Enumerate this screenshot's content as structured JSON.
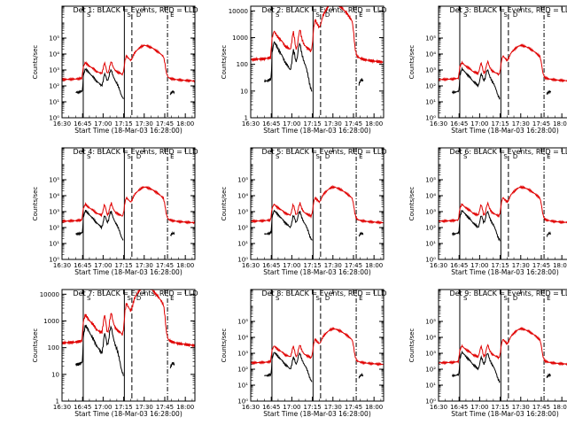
{
  "chart_data": {
    "type": "line",
    "layout": "3x3 grid of detector light curves",
    "xlabel": "Start Time (18-Mar-03 16:28:00)",
    "ylabel": "Counts/sec",
    "y_scale": "log",
    "x_tick_labels": [
      "16:30",
      "16:45",
      "17:00",
      "17:15",
      "17:30",
      "17:45",
      "18:00"
    ],
    "x_tick_values_min": [
      30,
      45,
      60,
      75,
      90,
      105,
      120
    ],
    "xlim_min": [
      30,
      127
    ],
    "series_colors": {
      "Events": "#000000",
      "LLD": "#e00000"
    },
    "panels": [
      {
        "title": "Det 1: BLACK = Events, RED = LLD",
        "ylim": [
          1,
          10000000
        ],
        "y_tick_labels": [
          "10⁰",
          "10¹",
          "10²",
          "10³",
          "10⁴",
          "10⁵"
        ],
        "y_tick_values": [
          1,
          10,
          100,
          1000,
          10000,
          100000
        ],
        "markers_min": [
          45.5,
          75.5,
          81,
          107
        ]
      },
      {
        "title": "Det 2: BLACK = Events, RED = LLD",
        "ylim": [
          1,
          15000
        ],
        "y_tick_labels": [
          "1",
          "10",
          "100",
          "1000",
          "10000"
        ],
        "y_tick_values": [
          1,
          10,
          100,
          1000,
          10000
        ],
        "markers_min": [
          45.5,
          75.5,
          81,
          107
        ]
      },
      {
        "title": "Det 3: BLACK = Events, RED = LLD",
        "ylim": [
          1,
          10000000
        ],
        "y_tick_labels": [
          "10⁰",
          "10¹",
          "10²",
          "10³",
          "10⁴",
          "10⁵"
        ],
        "y_tick_values": [
          1,
          10,
          100,
          1000,
          10000,
          100000
        ],
        "markers_min": [
          45.5,
          75.5,
          81,
          107
        ]
      },
      {
        "title": "Det 4: BLACK = Events, RED = LLD",
        "ylim": [
          1,
          10000000
        ],
        "y_tick_labels": [
          "10⁰",
          "10¹",
          "10²",
          "10³",
          "10⁴",
          "10⁵"
        ],
        "y_tick_values": [
          1,
          10,
          100,
          1000,
          10000,
          100000
        ],
        "markers_min": [
          45.5,
          75.5,
          81,
          107
        ]
      },
      {
        "title": "Det 5: BLACK = Events, RED = LLD",
        "ylim": [
          1,
          10000000
        ],
        "y_tick_labels": [
          "10⁰",
          "10¹",
          "10²",
          "10³",
          "10⁴",
          "10⁵"
        ],
        "y_tick_values": [
          1,
          10,
          100,
          1000,
          10000,
          100000
        ],
        "markers_min": [
          45.5,
          75.5,
          81,
          107
        ]
      },
      {
        "title": "Det 6: BLACK = Events, RED = LLD",
        "ylim": [
          1,
          10000000
        ],
        "y_tick_labels": [
          "10⁰",
          "10¹",
          "10²",
          "10³",
          "10⁴",
          "10⁵"
        ],
        "y_tick_values": [
          1,
          10,
          100,
          1000,
          10000,
          100000
        ],
        "markers_min": [
          45.5,
          75.5,
          81,
          107
        ]
      },
      {
        "title": "Det 7: BLACK = Events, RED = LLD",
        "ylim": [
          1,
          15000
        ],
        "y_tick_labels": [
          "1",
          "10",
          "100",
          "1000",
          "10000"
        ],
        "y_tick_values": [
          1,
          10,
          100,
          1000,
          10000
        ],
        "markers_min": [
          45.5,
          75.5,
          81,
          107
        ]
      },
      {
        "title": "Det 8: BLACK = Events, RED = LLD",
        "ylim": [
          1,
          10000000
        ],
        "y_tick_labels": [
          "10⁰",
          "10¹",
          "10²",
          "10³",
          "10⁴",
          "10⁵"
        ],
        "y_tick_values": [
          1,
          10,
          100,
          1000,
          10000,
          100000
        ],
        "markers_min": [
          45.5,
          75.5,
          81,
          107
        ]
      },
      {
        "title": "Det 9: BLACK = Events, RED = LLD",
        "ylim": [
          1,
          10000000
        ],
        "y_tick_labels": [
          "10⁰",
          "10¹",
          "10²",
          "10³",
          "10⁴",
          "10⁵"
        ],
        "y_tick_values": [
          1,
          10,
          100,
          1000,
          10000,
          100000
        ],
        "markers_min": [
          45.5,
          75.5,
          81,
          107
        ]
      }
    ],
    "lld_curve": {
      "x": [
        30,
        35,
        40,
        44.5,
        45.5,
        47,
        49,
        51,
        53,
        55,
        57,
        58,
        59,
        60,
        61,
        62,
        63,
        64,
        65,
        66,
        67,
        68,
        69,
        70,
        71,
        72,
        73,
        74,
        75,
        76,
        77,
        78,
        79,
        80,
        81,
        82,
        83,
        84,
        85,
        86,
        88,
        90,
        92,
        94,
        96,
        98,
        100,
        102,
        104,
        105,
        106,
        107,
        108,
        109,
        110,
        112,
        115,
        120,
        124,
        127
      ],
      "y": [
        250,
        260,
        270,
        300,
        1500,
        3000,
        2000,
        1500,
        1200,
        800,
        700,
        650,
        600,
        1200,
        3000,
        1500,
        600,
        800,
        2000,
        3500,
        1800,
        1200,
        900,
        800,
        700,
        650,
        600,
        500,
        900,
        4000,
        8000,
        6000,
        5000,
        4000,
        5000,
        8000,
        12000,
        15000,
        18000,
        22000,
        30000,
        35000,
        33000,
        28000,
        24000,
        18000,
        14000,
        10000,
        7000,
        3000,
        800,
        400,
        320,
        300,
        280,
        260,
        240,
        220,
        210,
        200
      ]
    },
    "events_curve": {
      "x": [
        40,
        42,
        44,
        45,
        45.5,
        47,
        49,
        51,
        53,
        55,
        57,
        58,
        59,
        60,
        61,
        62,
        63,
        64,
        65,
        66,
        67,
        68,
        69,
        70,
        71,
        72,
        73,
        74,
        75
      ],
      "y": [
        40,
        40,
        45,
        50,
        400,
        1200,
        800,
        500,
        350,
        200,
        150,
        120,
        100,
        200,
        600,
        400,
        200,
        300,
        800,
        1000,
        500,
        300,
        200,
        150,
        100,
        60,
        30,
        20,
        15
      ]
    },
    "events_tail": {
      "x": [
        109,
        110,
        111,
        112
      ],
      "y": [
        30,
        40,
        45,
        40
      ]
    }
  }
}
